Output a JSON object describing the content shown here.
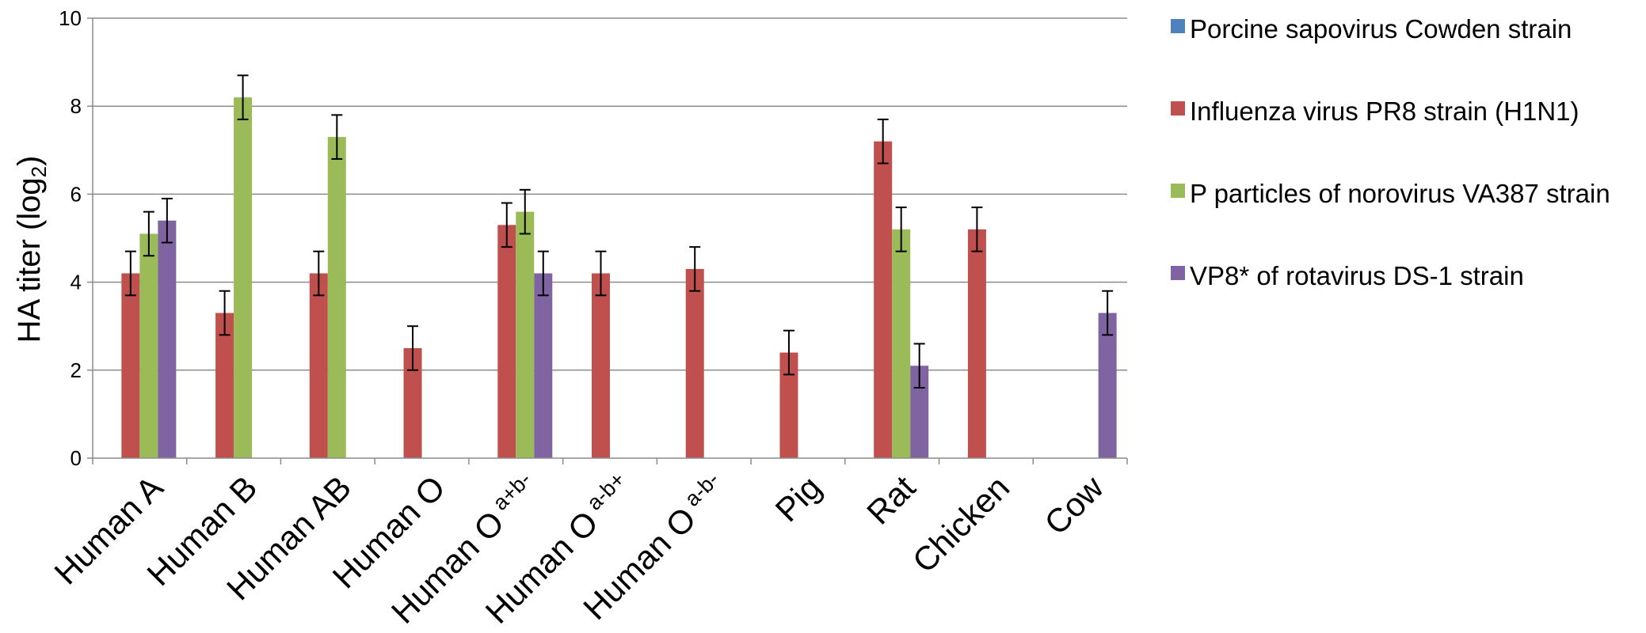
{
  "chart_data": {
    "type": "bar",
    "title": "",
    "ylabel_main": "HA titer (log",
    "ylabel_sub": "2",
    "ylabel_end": ")",
    "ylim": [
      0,
      10
    ],
    "yticks": [
      "0",
      "2",
      "4",
      "6",
      "8",
      "10"
    ],
    "grid": true,
    "legend_position": "right",
    "categories": [
      {
        "base": "Human A",
        "sup": ""
      },
      {
        "base": "Human B",
        "sup": ""
      },
      {
        "base": "Human AB",
        "sup": ""
      },
      {
        "base": "Human O",
        "sup": ""
      },
      {
        "base": "Human O",
        "sup": "a+b-"
      },
      {
        "base": "Human O",
        "sup": "a-b+"
      },
      {
        "base": "Human O",
        "sup": "a-b-"
      },
      {
        "base": "Pig",
        "sup": ""
      },
      {
        "base": "Rat",
        "sup": ""
      },
      {
        "base": "Chicken",
        "sup": ""
      },
      {
        "base": "Cow",
        "sup": ""
      }
    ],
    "series": [
      {
        "name": "Porcine sapovirus Cowden strain",
        "color": "#4F81BD",
        "values": [
          0,
          0,
          0,
          0,
          0,
          0,
          0,
          0,
          0,
          0,
          0
        ],
        "errors": [
          0,
          0,
          0,
          0,
          0,
          0,
          0,
          0,
          0,
          0,
          0
        ]
      },
      {
        "name": "Influenza virus PR8 strain (H1N1)",
        "color": "#C0504D",
        "values": [
          4.2,
          3.3,
          4.2,
          2.5,
          5.3,
          4.2,
          4.3,
          2.4,
          7.2,
          5.2,
          0
        ],
        "errors": [
          0.5,
          0.5,
          0.5,
          0.5,
          0.5,
          0.5,
          0.5,
          0.5,
          0.5,
          0.5,
          0
        ]
      },
      {
        "name": "P particles of norovirus VA387 strain",
        "color": "#9BBB59",
        "values": [
          5.1,
          8.2,
          7.3,
          0,
          5.6,
          0,
          0,
          0,
          5.2,
          0,
          0
        ],
        "errors": [
          0.5,
          0.5,
          0.5,
          0,
          0.5,
          0,
          0,
          0,
          0.5,
          0,
          0
        ]
      },
      {
        "name": "VP8* of rotavirus DS-1 strain",
        "color": "#8064A2",
        "values": [
          5.4,
          0,
          0,
          0,
          4.2,
          0,
          0,
          0,
          2.1,
          0,
          3.3
        ],
        "errors": [
          0.5,
          0,
          0,
          0,
          0.5,
          0,
          0,
          0,
          0.5,
          0,
          0.5
        ]
      }
    ]
  }
}
